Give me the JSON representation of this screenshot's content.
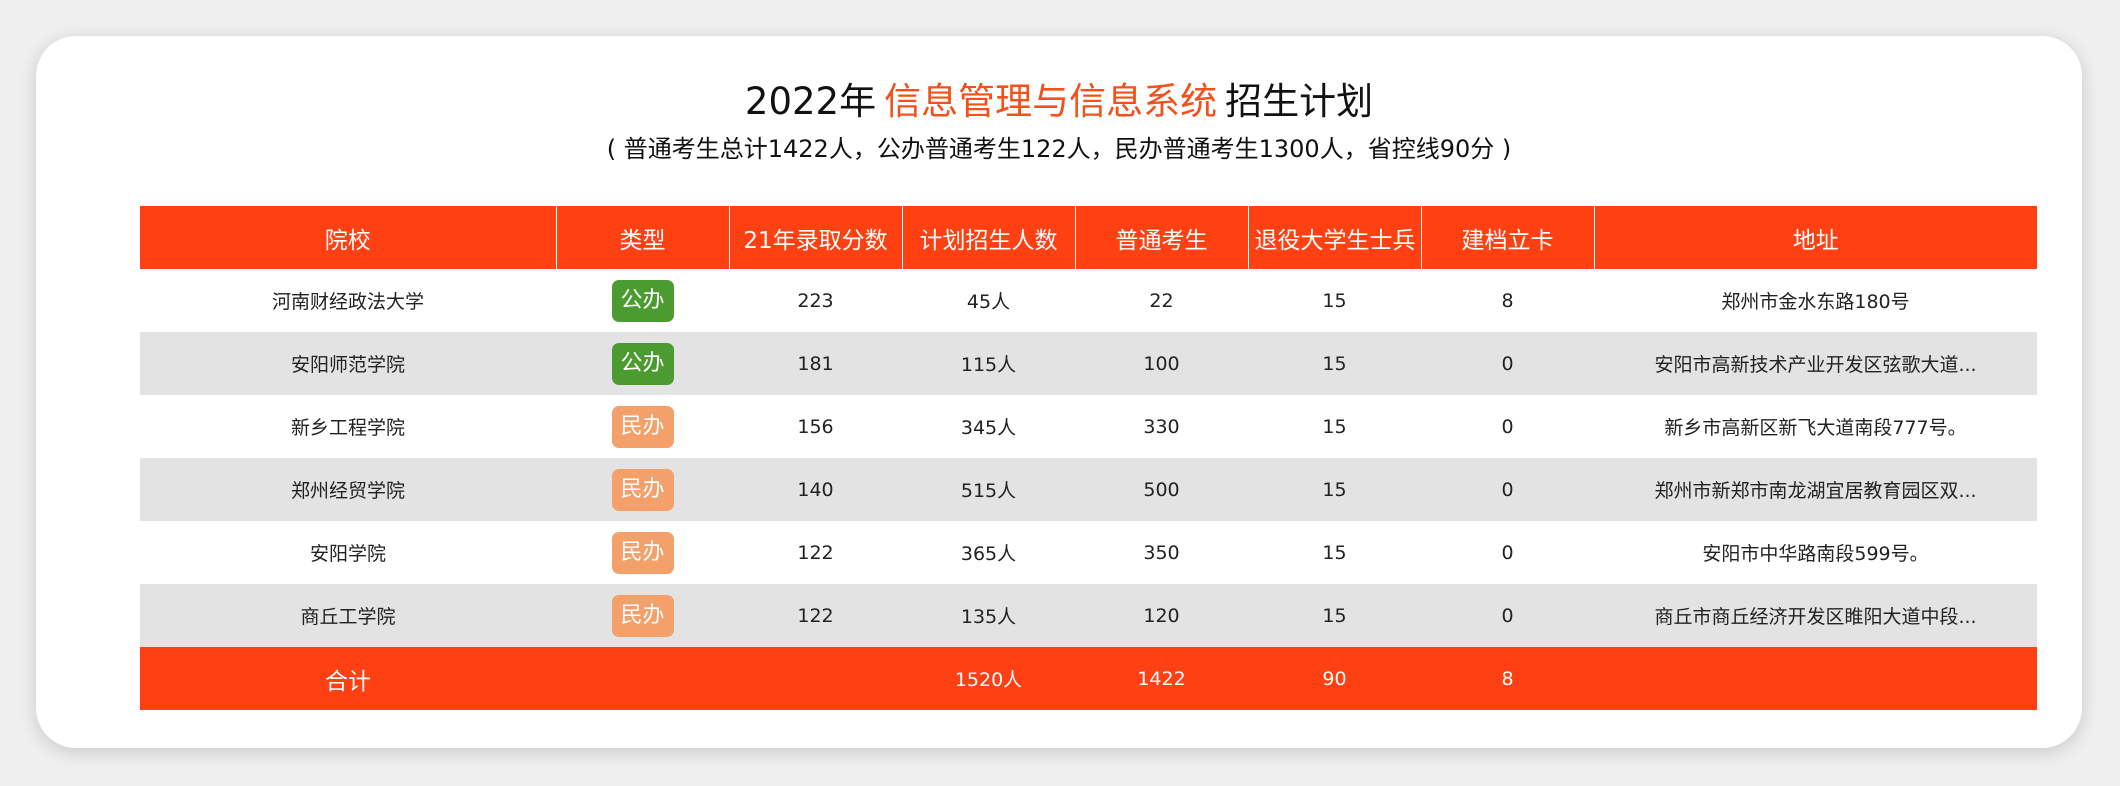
{
  "header": {
    "year": "2022年",
    "major": "信息管理与信息系统",
    "suffix": "招生计划",
    "summary": "( 普通考生总计1422人，公办普通考生122人，民办普通考生1300人，省控线90分 )"
  },
  "colors": {
    "accent": "#ff4013",
    "public_badge": "#4c9b30",
    "private_badge": "#f3a06a",
    "school_text": "#4a1070"
  },
  "table": {
    "headers": [
      "院校",
      "类型",
      "21年录取分数",
      "计划招生人数",
      "普通考生",
      "退役大学生士兵",
      "建档立卡",
      "地址"
    ],
    "rows": [
      {
        "school": "河南财经政法大学",
        "type": "公办",
        "score": "223",
        "plan": "45人",
        "regular": "22",
        "veterans": "15",
        "filed": "8",
        "address": "郑州市金水东路180号"
      },
      {
        "school": "安阳师范学院",
        "type": "公办",
        "score": "181",
        "plan": "115人",
        "regular": "100",
        "veterans": "15",
        "filed": "0",
        "address": "安阳市高新技术产业开发区弦歌大道..."
      },
      {
        "school": "新乡工程学院",
        "type": "民办",
        "score": "156",
        "plan": "345人",
        "regular": "330",
        "veterans": "15",
        "filed": "0",
        "address": "新乡市高新区新飞大道南段777号。"
      },
      {
        "school": "郑州经贸学院",
        "type": "民办",
        "score": "140",
        "plan": "515人",
        "regular": "500",
        "veterans": "15",
        "filed": "0",
        "address": "郑州市新郑市南龙湖宜居教育园区双..."
      },
      {
        "school": "安阳学院",
        "type": "民办",
        "score": "122",
        "plan": "365人",
        "regular": "350",
        "veterans": "15",
        "filed": "0",
        "address": "安阳市中华路南段599号。"
      },
      {
        "school": "商丘工学院",
        "type": "民办",
        "score": "122",
        "plan": "135人",
        "regular": "120",
        "veterans": "15",
        "filed": "0",
        "address": "商丘市商丘经济开发区睢阳大道中段..."
      }
    ],
    "total": {
      "label": "合计",
      "type": "",
      "score": "",
      "plan": "1520人",
      "regular": "1422",
      "veterans": "90",
      "filed": "8",
      "address": ""
    }
  }
}
